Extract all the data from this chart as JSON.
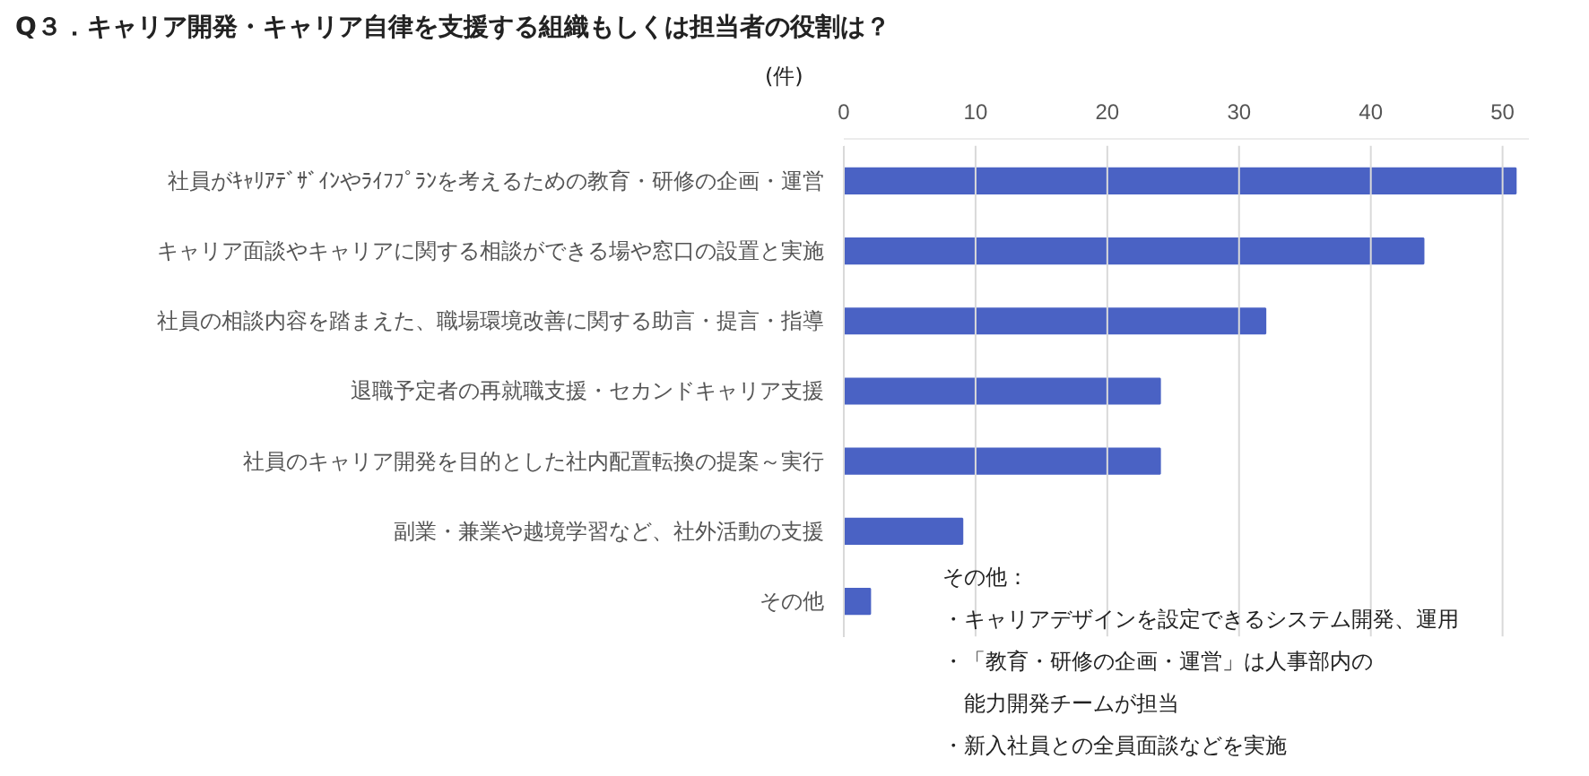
{
  "chart_data": {
    "type": "bar",
    "orientation": "horizontal",
    "title": "Q３．キャリア開発・キャリア自律を支援する組織もしくは担当者の役割は？",
    "xlabel": "(件)",
    "categories": [
      "社員がｷｬﾘｱﾃﾞｻﾞｲﾝやﾗｲﾌﾌﾟﾗﾝを考えるための教育・研修の企画・運営",
      "キャリア面談やキャリアに関する相談ができる場や窓口の設置と実施",
      "社員の相談内容を踏まえた、職場環境改善に関する助言・提言・指導",
      "退職予定者の再就職支援・セカンドキャリア支援",
      "社員のキャリア開発を目的とした社内配置転換の提案～実行",
      "副業・兼業や越境学習など、社外活動の支援",
      "その他"
    ],
    "values": [
      51,
      44,
      32,
      24,
      24,
      9,
      2
    ],
    "color": "#4a62c4",
    "xlim": [
      0,
      52
    ],
    "xticks": [
      0,
      10,
      20,
      30,
      40,
      50
    ],
    "grid": "x",
    "annotations": [
      "その他：",
      "・キャリアデザインを設定できるシステム開発、運用",
      "・「教育・研修の企画・運営」は人事部内の",
      "　能力開発チームが担当",
      "・新入社員との全員面談などを実施"
    ]
  }
}
